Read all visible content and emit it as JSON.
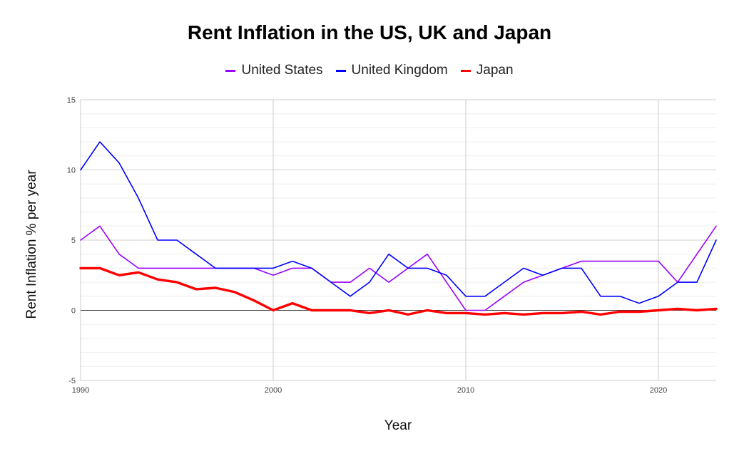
{
  "chart_data": {
    "type": "line",
    "title": "Rent Inflation in the US, UK and Japan",
    "xlabel": "Year",
    "ylabel": "Rent Inflation % per year",
    "xlim": [
      1990,
      2023
    ],
    "ylim": [
      -5,
      15
    ],
    "x_ticks": [
      1990,
      2000,
      2010,
      2020
    ],
    "y_ticks": [
      -5,
      0,
      5,
      10,
      15
    ],
    "grid": true,
    "legend_position": "top",
    "x": [
      1990,
      1991,
      1992,
      1993,
      1994,
      1995,
      1996,
      1997,
      1998,
      1999,
      2000,
      2001,
      2002,
      2003,
      2004,
      2005,
      2006,
      2007,
      2008,
      2009,
      2010,
      2011,
      2012,
      2013,
      2014,
      2015,
      2016,
      2017,
      2018,
      2019,
      2020,
      2021,
      2022,
      2023
    ],
    "series": [
      {
        "name": "United States",
        "color": "#9900ff",
        "values": [
          5,
          6,
          4,
          3,
          3,
          3,
          3,
          3,
          3,
          3,
          2.5,
          3,
          3,
          2,
          2,
          3,
          2,
          3,
          4,
          2,
          0,
          0,
          1,
          2,
          2.5,
          3,
          3.5,
          3.5,
          3.5,
          3.5,
          3.5,
          2,
          4,
          6
        ]
      },
      {
        "name": "United Kingdom",
        "color": "#0000ff",
        "values": [
          10,
          12,
          10.5,
          8,
          5,
          5,
          4,
          3,
          3,
          3,
          3,
          3.5,
          3,
          2,
          1,
          2,
          4,
          3,
          3,
          2.5,
          1,
          1,
          2,
          3,
          2.5,
          3,
          3,
          1,
          1,
          0.5,
          1,
          2,
          2,
          5
        ]
      },
      {
        "name": "Japan",
        "color": "#ff0000",
        "values": [
          3,
          3,
          2.5,
          2.7,
          2.2,
          2,
          1.5,
          1.6,
          1.3,
          0.7,
          0,
          0.5,
          0,
          0,
          0,
          -0.2,
          0,
          -0.3,
          0,
          -0.2,
          -0.2,
          -0.3,
          -0.2,
          -0.3,
          -0.2,
          -0.2,
          -0.1,
          -0.3,
          -0.1,
          -0.1,
          0,
          0.1,
          0,
          0.1
        ]
      }
    ]
  }
}
